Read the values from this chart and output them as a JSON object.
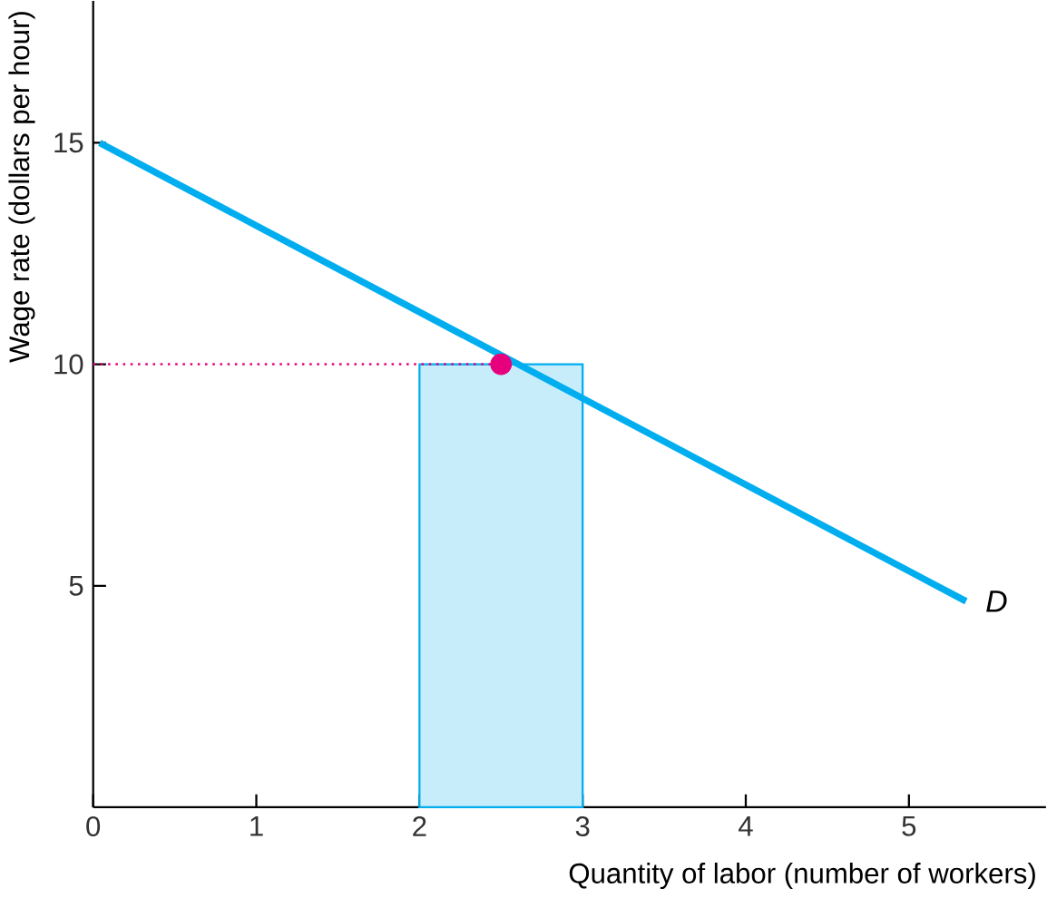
{
  "chart_data": {
    "type": "line",
    "xlabel": "Quantity of labor (number of workers)",
    "ylabel": "Wage rate (dollars per hour)",
    "xlim": [
      0,
      5.84
    ],
    "ylim": [
      0,
      18.2
    ],
    "xticks": [
      0,
      1,
      2,
      3,
      4,
      5
    ],
    "yticks": [
      5,
      10,
      15
    ],
    "grid": false,
    "series": [
      {
        "type": "area",
        "x": [
          2,
          3
        ],
        "values": [
          10,
          10
        ],
        "color": "#00aeef"
      },
      {
        "x": [
          0,
          2.5
        ],
        "values": [
          10,
          10
        ],
        "color": "#e6007e",
        "line_style": "dotted"
      },
      {
        "name": "D",
        "x": [
          0.04,
          5.35
        ],
        "values": [
          15,
          4.65
        ],
        "color": "#00aeef",
        "line_style": "solid"
      },
      {
        "type": "scatter",
        "x": [
          2.5
        ],
        "values": [
          10
        ],
        "color": "#e6007e",
        "marker": "circle"
      }
    ]
  }
}
